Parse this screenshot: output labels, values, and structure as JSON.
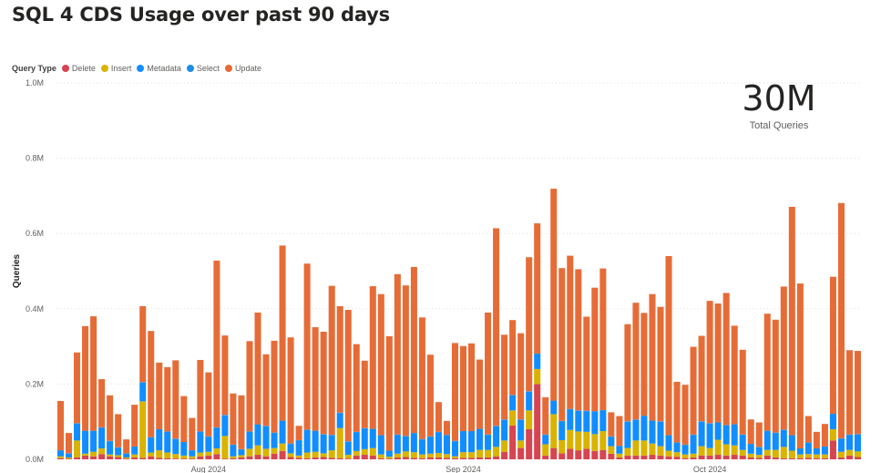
{
  "page": {
    "title": "SQL 4 CDS Usage over past 90 days"
  },
  "kpi": {
    "value": "30M",
    "label": "Total Queries"
  },
  "legend": {
    "title": "Query Type",
    "items": [
      {
        "label": "Delete",
        "color": "#d64550"
      },
      {
        "label": "Insert",
        "color": "#d9b300"
      },
      {
        "label": "Metadata",
        "color": "#118dff"
      },
      {
        "label": "Select",
        "color": "#1a8fe8"
      },
      {
        "label": "Update",
        "color": "#e66c37"
      }
    ]
  },
  "chart_data": {
    "type": "bar",
    "stacked": true,
    "title": "SQL 4 CDS Usage over past 90 days",
    "xlabel": "",
    "ylabel": "Queries",
    "ylim": [
      0,
      1000000
    ],
    "yticks": [
      "0.0M",
      "0.2M",
      "0.4M",
      "0.6M",
      "0.8M",
      "1.0M"
    ],
    "xticks": [
      {
        "label": "Aug 2024",
        "index": 18
      },
      {
        "label": "Sep 2024",
        "index": 49
      },
      {
        "label": "Oct 2024",
        "index": 79
      }
    ],
    "grid": true,
    "legend_position": "top-left",
    "series": [
      {
        "name": "Delete",
        "color": "#d64550",
        "values": [
          3000,
          2000,
          5000,
          10000,
          8000,
          14000,
          8000,
          6000,
          2000,
          5000,
          4000,
          8000,
          4000,
          3000,
          2000,
          2000,
          2000,
          8000,
          10000,
          14000,
          2000,
          3000,
          5000,
          8000,
          12000,
          8000,
          15000,
          22000,
          6000,
          4000,
          3000,
          5000,
          6000,
          4000,
          3000,
          2000,
          10000,
          12000,
          10000,
          3000,
          2000,
          5000,
          6000,
          4000,
          3000,
          5000,
          5000,
          4000,
          3000,
          4000,
          4000,
          5000,
          5000,
          8000,
          20000,
          90000,
          30000,
          80000,
          200000,
          10000,
          30000,
          16000,
          28000,
          24000,
          28000,
          22000,
          25000,
          15000,
          5000,
          10000,
          10000,
          10000,
          12000,
          10000,
          8000,
          7000,
          3000,
          5000,
          10000,
          10000,
          12000,
          10000,
          12000,
          10000,
          5000,
          4000,
          10000,
          5000,
          3000,
          3000,
          3000,
          4000,
          3000,
          3000,
          50000,
          5000,
          10000,
          6000
        ]
      },
      {
        "name": "Insert",
        "color": "#d9b300",
        "values": [
          5000,
          3000,
          45000,
          5000,
          12000,
          15000,
          5000,
          5000,
          3000,
          8000,
          150000,
          10000,
          20000,
          15000,
          12000,
          8000,
          6000,
          10000,
          10000,
          15000,
          60000,
          5000,
          6000,
          20000,
          25000,
          20000,
          15000,
          20000,
          10000,
          6000,
          15000,
          15000,
          10000,
          20000,
          80000,
          10000,
          12000,
          15000,
          20000,
          10000,
          5000,
          10000,
          15000,
          15000,
          10000,
          10000,
          12000,
          10000,
          5000,
          15000,
          15000,
          20000,
          20000,
          25000,
          30000,
          40000,
          20000,
          50000,
          40000,
          30000,
          90000,
          35000,
          50000,
          50000,
          45000,
          45000,
          50000,
          20000,
          10000,
          20000,
          40000,
          40000,
          30000,
          25000,
          15000,
          12000,
          10000,
          10000,
          25000,
          20000,
          40000,
          30000,
          25000,
          15000,
          10000,
          8000,
          15000,
          20000,
          30000,
          20000,
          10000,
          10000,
          10000,
          10000,
          30000,
          15000,
          15000,
          15000
        ]
      },
      {
        "name": "Metadata",
        "color": "#118dff",
        "values": [
          15000,
          10000,
          45000,
          60000,
          55000,
          55000,
          35000,
          20000,
          10000,
          20000,
          50000,
          40000,
          55000,
          55000,
          40000,
          35000,
          15000,
          55000,
          40000,
          55000,
          55000,
          30000,
          15000,
          45000,
          55000,
          60000,
          40000,
          60000,
          25000,
          40000,
          60000,
          55000,
          50000,
          40000,
          40000,
          35000,
          50000,
          55000,
          50000,
          50000,
          15000,
          50000,
          40000,
          50000,
          40000,
          45000,
          55000,
          50000,
          40000,
          55000,
          55000,
          55000,
          40000,
          55000,
          55000,
          40000,
          55000,
          50000,
          40000,
          25000,
          35000,
          50000,
          55000,
          55000,
          55000,
          60000,
          55000,
          25000,
          20000,
          70000,
          55000,
          65000,
          60000,
          65000,
          40000,
          25000,
          25000,
          50000,
          65000,
          65000,
          45000,
          50000,
          55000,
          40000,
          25000,
          20000,
          50000,
          45000,
          45000,
          40000,
          15000,
          30000,
          15000,
          20000,
          40000,
          35000,
          40000,
          45000
        ]
      },
      {
        "name": "Select",
        "color": "#1a8fe8",
        "values": [
          1000,
          1000,
          1000,
          1000,
          1000,
          1000,
          1000,
          1000,
          1000,
          1000,
          1000,
          1000,
          1000,
          1000,
          1000,
          1000,
          1000,
          1000,
          1000,
          1000,
          1000,
          1000,
          1000,
          1000,
          1000,
          1000,
          1000,
          1000,
          1000,
          1000,
          1000,
          1000,
          1000,
          1000,
          1000,
          1000,
          1000,
          1000,
          1000,
          1000,
          1000,
          1000,
          1000,
          1000,
          1000,
          1000,
          1000,
          1000,
          1000,
          1000,
          1000,
          1000,
          1000,
          1000,
          1000,
          1000,
          1000,
          1000,
          1000,
          1000,
          1000,
          1000,
          1000,
          1000,
          1000,
          1000,
          1000,
          1000,
          1000,
          1000,
          1000,
          1000,
          1000,
          1000,
          1000,
          1000,
          1000,
          1000,
          1000,
          1000,
          1000,
          1000,
          1000,
          1000,
          1000,
          1000,
          1000,
          1000,
          1000,
          1000,
          1000,
          1000,
          1000,
          1000,
          1000,
          1000,
          1000,
          1000
        ]
      },
      {
        "name": "Update",
        "color": "#e66c37",
        "values": [
          131000,
          54000,
          188000,
          278000,
          304000,
          128000,
          121000,
          88000,
          37000,
          111000,
          202000,
          282000,
          177000,
          171000,
          208000,
          122000,
          86000,
          190000,
          170000,
          443000,
          211000,
          136000,
          143000,
          240000,
          297000,
          190000,
          244000,
          465000,
          282000,
          38000,
          441000,
          275000,
          272000,
          396000,
          283000,
          349000,
          233000,
          179000,
          379000,
          375000,
          304000,
          426000,
          400000,
          441000,
          323000,
          217000,
          79000,
          37000,
          260000,
          226000,
          233000,
          184000,
          324000,
          525000,
          225000,
          199000,
          229000,
          356000,
          346000,
          99000,
          563000,
          406000,
          407000,
          375000,
          250000,
          328000,
          376000,
          64000,
          79000,
          258000,
          310000,
          273000,
          336000,
          304000,
          476000,
          161000,
          159000,
          233000,
          227000,
          325000,
          316000,
          351000,
          262000,
          225000,
          65000,
          65000,
          311000,
          300000,
          380000,
          607000,
          438000,
          70000,
          44000,
          60000,
          364000,
          625000,
          224000,
          221000
        ]
      }
    ]
  }
}
